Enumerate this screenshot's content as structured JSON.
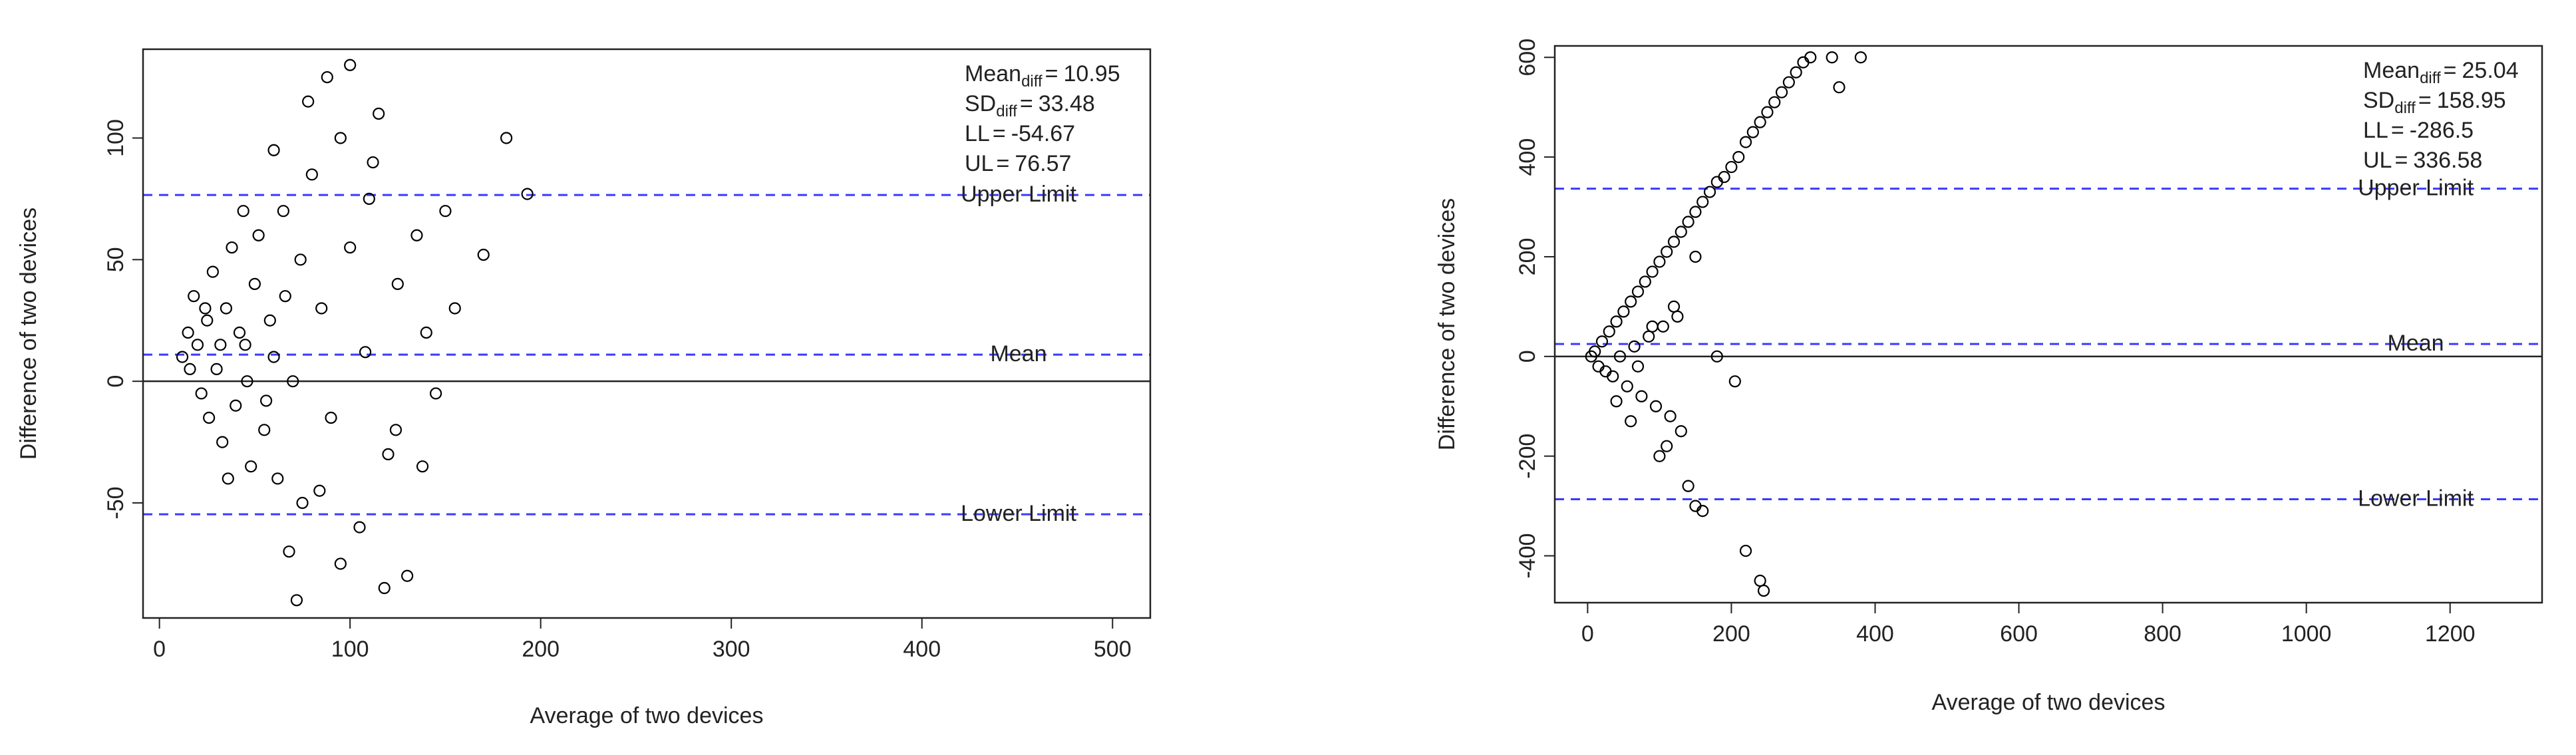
{
  "chart_data": [
    {
      "type": "scatter",
      "x_label": "Average of two devices",
      "y_label": "Difference of two devices",
      "xlim": [
        -8.6,
        519.8
      ],
      "ylim": [
        -97.3,
        136.5
      ],
      "xticks": [
        0,
        100,
        200,
        300,
        400,
        500
      ],
      "yticks": [
        -50,
        0,
        50,
        100
      ],
      "x": [
        15,
        20,
        25,
        30,
        35,
        40,
        45,
        50,
        55,
        60,
        18,
        22,
        28,
        33,
        38,
        42,
        48,
        52,
        58,
        62,
        65,
        70,
        75,
        80,
        85,
        90,
        95,
        100,
        105,
        110,
        115,
        120,
        125,
        130,
        135,
        140,
        145,
        150,
        155,
        170,
        182,
        193,
        12,
        68,
        72,
        88,
        100,
        118,
        95,
        78,
        60,
        44,
        36,
        26,
        16,
        32,
        56,
        84,
        108,
        124,
        138,
        112,
        74,
        66,
        46,
        24
      ],
      "values": [
        20,
        15,
        25,
        5,
        30,
        -10,
        15,
        40,
        -20,
        10,
        35,
        -5,
        45,
        -25,
        55,
        20,
        -35,
        60,
        25,
        -40,
        70,
        0,
        -50,
        85,
        30,
        -15,
        100,
        55,
        -60,
        75,
        110,
        -30,
        40,
        -80,
        60,
        20,
        -5,
        70,
        30,
        52,
        100,
        77,
        10,
        -70,
        -90,
        125,
        130,
        -85,
        -75,
        115,
        95,
        70,
        -40,
        -15,
        5,
        15,
        -8,
        -45,
        12,
        -20,
        -35,
        90,
        50,
        35,
        0,
        30
      ],
      "zero_line": 0,
      "ref_lines": [
        {
          "label": "Upper Limit",
          "value": 76.57
        },
        {
          "label": "Mean",
          "value": 10.95
        },
        {
          "label": "Lower Limit",
          "value": -54.67
        }
      ],
      "stats": [
        {
          "label": "Mean",
          "subscript": "diff",
          "sign": "=",
          "value": 10.95
        },
        {
          "label": "SD",
          "subscript": "diff",
          "sign": "=",
          "value": 33.48
        },
        {
          "label": "LL",
          "sign": "=",
          "value": -54.67
        },
        {
          "label": "UL",
          "sign": "=",
          "value": 76.57
        }
      ]
    },
    {
      "type": "scatter",
      "x_label": "Average of two devices",
      "y_label": "Difference of two devices",
      "xlim": [
        -45.7,
        1328
      ],
      "ylim": [
        -494,
        623
      ],
      "xticks": [
        0,
        200,
        400,
        600,
        800,
        1000,
        1200
      ],
      "yticks": [
        -400,
        -200,
        0,
        200,
        400,
        600
      ],
      "x": [
        5,
        10,
        15,
        20,
        25,
        30,
        35,
        40,
        45,
        50,
        55,
        60,
        65,
        70,
        75,
        80,
        85,
        90,
        95,
        100,
        105,
        110,
        115,
        120,
        125,
        130,
        140,
        150,
        160,
        170,
        180,
        190,
        200,
        210,
        220,
        230,
        240,
        250,
        260,
        270,
        280,
        290,
        300,
        310,
        340,
        350,
        380,
        180,
        205,
        140,
        150,
        160,
        220,
        240,
        245,
        110,
        130,
        100,
        60,
        40,
        70,
        120,
        150,
        90
      ],
      "values": [
        0,
        10,
        -20,
        30,
        -30,
        50,
        -40,
        70,
        0,
        90,
        -60,
        110,
        20,
        130,
        -80,
        150,
        40,
        170,
        -100,
        190,
        60,
        210,
        -120,
        230,
        80,
        250,
        270,
        290,
        310,
        330,
        350,
        360,
        380,
        400,
        430,
        450,
        470,
        490,
        510,
        530,
        550,
        570,
        590,
        600,
        600,
        540,
        600,
        0,
        -50,
        -260,
        -300,
        -310,
        -390,
        -450,
        -470,
        -180,
        -150,
        -200,
        -130,
        -90,
        -20,
        100,
        200,
        60
      ],
      "zero_line": 0,
      "ref_lines": [
        {
          "label": "Upper Limit",
          "value": 336.58
        },
        {
          "label": "Mean",
          "value": 25.04
        },
        {
          "label": "Lower Limit",
          "value": -286.5
        }
      ],
      "stats": [
        {
          "label": "Mean",
          "subscript": "diff",
          "sign": "=",
          "value": 25.04
        },
        {
          "label": "SD",
          "subscript": "diff",
          "sign": "=",
          "value": 158.95
        },
        {
          "label": "LL",
          "sign": "=",
          "value": -286.5
        },
        {
          "label": "UL",
          "sign": "=",
          "value": 336.58
        }
      ]
    }
  ]
}
